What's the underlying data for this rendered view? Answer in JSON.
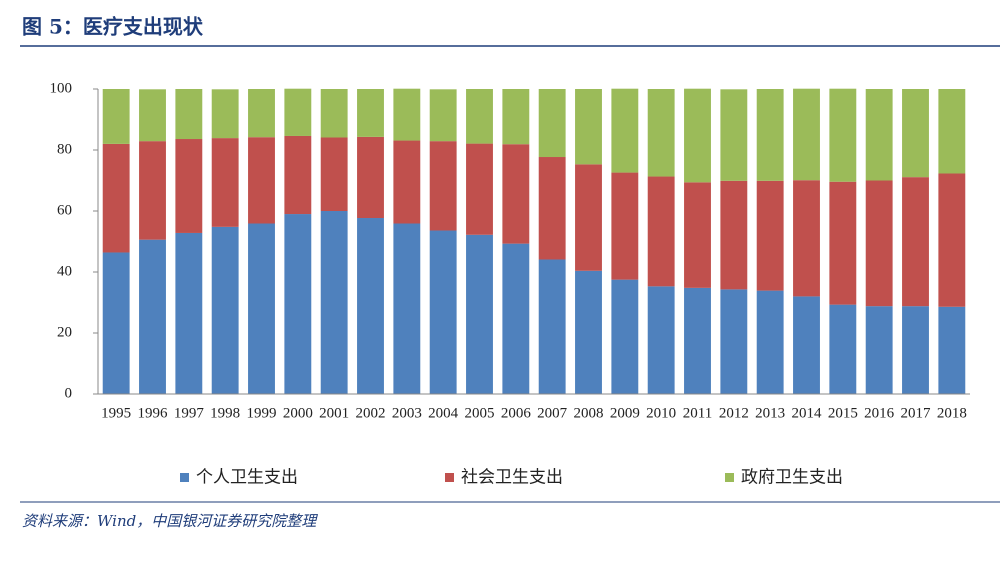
{
  "chart_data": {
    "type": "stacked_bar",
    "title": "图 5：医疗支出现状",
    "source": "资料来源：Wind，中国银河证券研究院整理",
    "categories": [
      "1995",
      "1996",
      "1997",
      "1998",
      "1999",
      "2000",
      "2001",
      "2002",
      "2003",
      "2004",
      "2005",
      "2006",
      "2007",
      "2008",
      "2009",
      "2010",
      "2011",
      "2012",
      "2013",
      "2014",
      "2015",
      "2016",
      "2017",
      "2018"
    ],
    "series": [
      {
        "name": "个人卫生支出",
        "color": "#4f81bd",
        "values": [
          46.4,
          50.6,
          52.8,
          54.8,
          55.9,
          59.0,
          60.0,
          57.7,
          55.9,
          53.6,
          52.2,
          49.3,
          44.1,
          40.4,
          37.5,
          35.3,
          34.8,
          34.3,
          33.9,
          32.0,
          29.3,
          28.8,
          28.8,
          28.6
        ]
      },
      {
        "name": "社会卫生支出",
        "color": "#c0504d",
        "values": [
          35.6,
          32.3,
          30.8,
          29.1,
          28.3,
          25.6,
          24.1,
          26.6,
          27.2,
          29.3,
          29.9,
          32.6,
          33.6,
          34.9,
          35.1,
          36.0,
          34.6,
          35.6,
          36.0,
          38.1,
          40.3,
          41.2,
          42.3,
          43.7
        ]
      },
      {
        "name": "政府卫生支出",
        "color": "#9bbb59",
        "values": [
          18.0,
          17.0,
          16.4,
          16.0,
          15.8,
          15.5,
          15.9,
          15.7,
          17.0,
          17.0,
          17.9,
          18.1,
          22.3,
          24.7,
          27.5,
          28.7,
          30.7,
          30.0,
          30.1,
          30.0,
          30.5,
          30.0,
          28.9,
          27.7
        ]
      }
    ],
    "ylim": [
      0,
      100
    ],
    "yticks": [
      0,
      20,
      40,
      60,
      80,
      100
    ],
    "grid": false
  }
}
